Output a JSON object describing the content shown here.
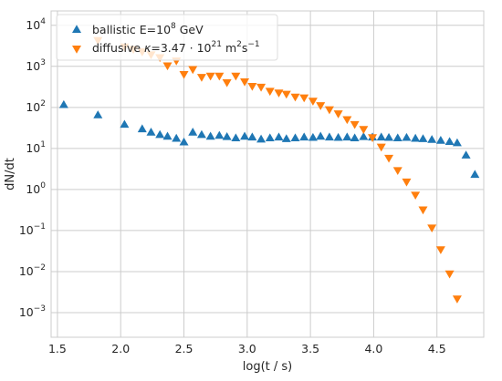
{
  "chart_data": {
    "type": "scatter",
    "title": "",
    "xlabel": "log(t / s)",
    "ylabel": "dN/dt",
    "xlim": [
      1.45,
      4.87
    ],
    "ylim_log10": [
      -3.6,
      4.35
    ],
    "yscale": "log",
    "grid": true,
    "legend_position": "top-left",
    "x_ticks": [
      1.5,
      2.0,
      2.5,
      3.0,
      3.5,
      4.0,
      4.5
    ],
    "x_tick_labels": [
      "1.5",
      "2.0",
      "2.5",
      "3.0",
      "3.5",
      "4.0",
      "4.5"
    ],
    "y_ticks": [
      {
        "base": "10",
        "exp": "4",
        "value": 4
      },
      {
        "base": "10",
        "exp": "3",
        "value": 3
      },
      {
        "base": "10",
        "exp": "2",
        "value": 2
      },
      {
        "base": "10",
        "exp": "1",
        "value": 1
      },
      {
        "base": "10",
        "exp": "0",
        "value": 0
      },
      {
        "base": "10",
        "exp": "−1",
        "value": -1
      },
      {
        "base": "10",
        "exp": "−2",
        "value": -2
      },
      {
        "base": "10",
        "exp": "−3",
        "value": -3
      }
    ],
    "series": [
      {
        "name": "ballistic E=10^8 GeV",
        "legend_parts": [
          "ballistic E=10",
          "8",
          " GeV"
        ],
        "marker": "triangle-up",
        "color": "#1f77b4",
        "x": [
          1.55,
          1.82,
          2.03,
          2.17,
          2.24,
          2.31,
          2.37,
          2.44,
          2.5,
          2.57,
          2.64,
          2.71,
          2.78,
          2.84,
          2.91,
          2.98,
          3.04,
          3.11,
          3.18,
          3.25,
          3.31,
          3.38,
          3.45,
          3.52,
          3.58,
          3.65,
          3.72,
          3.79,
          3.85,
          3.92,
          3.99,
          4.06,
          4.12,
          4.19,
          4.26,
          4.33,
          4.39,
          4.46,
          4.53,
          4.6,
          4.66,
          4.73,
          4.8
        ],
        "y_log10": [
          2.05,
          1.8,
          1.57,
          1.46,
          1.38,
          1.32,
          1.28,
          1.23,
          1.14,
          1.38,
          1.32,
          1.28,
          1.3,
          1.27,
          1.24,
          1.28,
          1.26,
          1.21,
          1.24,
          1.26,
          1.22,
          1.24,
          1.26,
          1.25,
          1.28,
          1.26,
          1.25,
          1.26,
          1.24,
          1.27,
          1.26,
          1.26,
          1.25,
          1.24,
          1.25,
          1.23,
          1.22,
          1.2,
          1.18,
          1.15,
          1.12,
          0.82,
          0.35
        ]
      },
      {
        "name": "diffusive κ=3.47·10^21 m²s⁻¹",
        "legend_parts": [
          "diffusive ",
          "κ",
          "=3.47 · 10",
          "21",
          " m",
          "2",
          "s",
          "−1"
        ],
        "marker": "triangle-down",
        "color": "#ff7f0e",
        "x": [
          1.82,
          2.03,
          2.1,
          2.17,
          2.24,
          2.31,
          2.37,
          2.44,
          2.5,
          2.57,
          2.64,
          2.71,
          2.78,
          2.84,
          2.91,
          2.98,
          3.04,
          3.11,
          3.18,
          3.25,
          3.31,
          3.38,
          3.45,
          3.52,
          3.58,
          3.65,
          3.72,
          3.79,
          3.85,
          3.92,
          3.99,
          4.06,
          4.12,
          4.19,
          4.26,
          4.33,
          4.39,
          4.46,
          4.53,
          4.6,
          4.66
        ],
        "y_log10": [
          3.65,
          3.49,
          3.43,
          3.37,
          3.3,
          3.23,
          3.03,
          3.15,
          2.82,
          2.94,
          2.75,
          2.78,
          2.78,
          2.62,
          2.78,
          2.64,
          2.53,
          2.51,
          2.41,
          2.37,
          2.34,
          2.27,
          2.25,
          2.17,
          2.06,
          1.96,
          1.86,
          1.72,
          1.6,
          1.48,
          1.28,
          1.05,
          0.78,
          0.48,
          0.2,
          -0.12,
          -0.48,
          -0.92,
          -1.45,
          -2.04,
          -2.65
        ]
      }
    ]
  }
}
